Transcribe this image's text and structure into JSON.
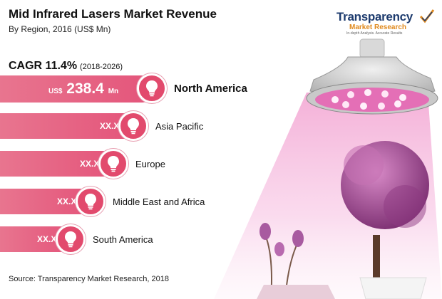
{
  "header": {
    "title": "Mid Infrared Lasers Market Revenue",
    "subtitle": "By Region, 2016 (US$ Mn)",
    "cagr_label": "CAGR 11.4%",
    "cagr_period": "(2018-2026)"
  },
  "logo": {
    "name": "Transparency",
    "sub": "Market Research",
    "tagline": "In-depth Analysis. Accurate Results"
  },
  "source": "Source:  Transparency Market Research, 2018",
  "colors": {
    "bar": "#e4547a",
    "bubble": "#e24a6d",
    "logo_blue": "#1d3b6e",
    "logo_orange": "#e08a1e"
  },
  "chart_data": {
    "type": "bar",
    "orientation": "horizontal",
    "categories": [
      "North America",
      "Asia Pacific",
      "Europe",
      "Middle East and Africa",
      "South America"
    ],
    "values": [
      238.4,
      null,
      null,
      null,
      null
    ],
    "value_labels": [
      "238.4",
      "XX.X",
      "XX.X",
      "XX.X",
      "XX.X"
    ],
    "value_prefix": "US$",
    "value_suffix": "Mn",
    "title": "Mid Infrared Lasers Market Revenue",
    "subtitle": "By Region, 2016 (US$ Mn)",
    "legend": "none",
    "grid": false
  }
}
